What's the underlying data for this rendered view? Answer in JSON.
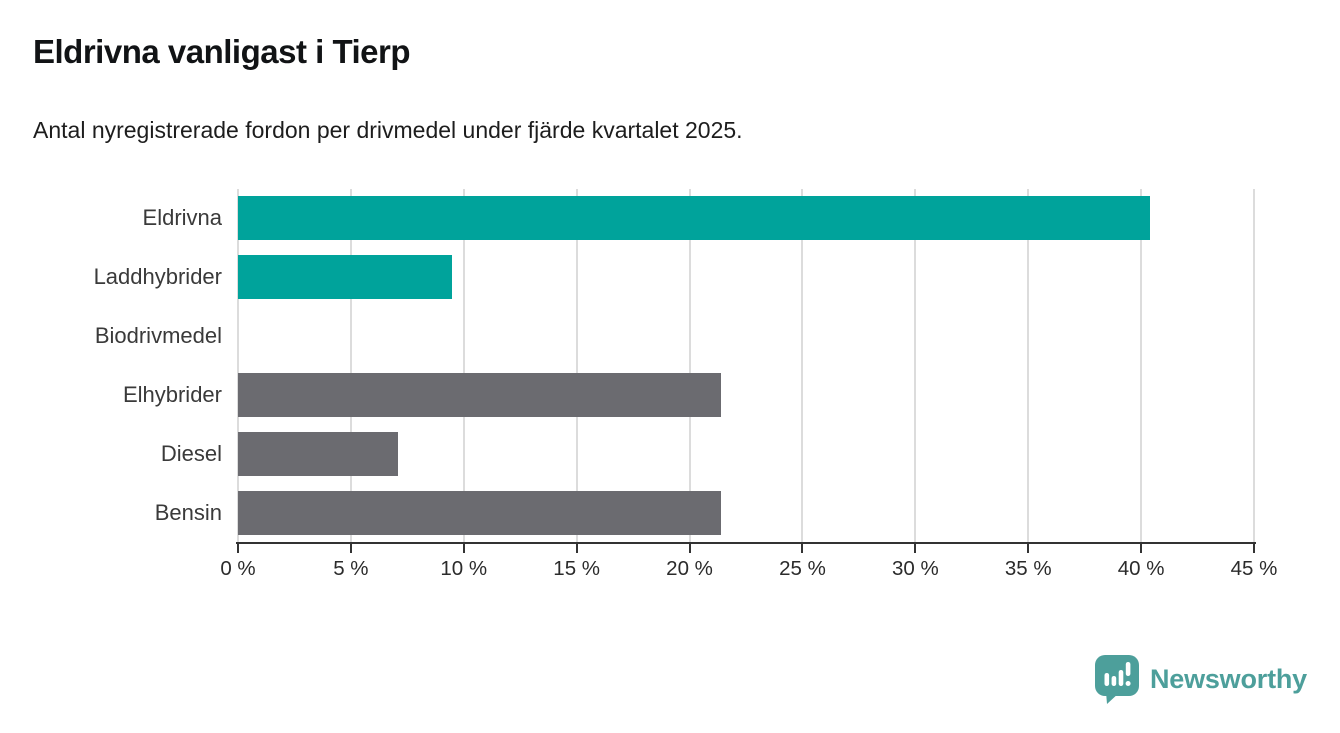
{
  "title": "Eldrivna vanligast i Tierp",
  "subtitle": "Antal nyregistrerade fordon per drivmedel under fjärde kvartalet 2025.",
  "branding": {
    "logo_text": "Newsworthy",
    "logo_icon": "bar-chart-speech-bubble-icon",
    "logo_color": "#4d9f9b"
  },
  "colors": {
    "teal_bar": "#00a39b",
    "gray_bar": "#6b6b70",
    "gridline": "#dcdcdc",
    "axis": "#333333",
    "label_text": "#3a3a3a"
  },
  "chart_data": {
    "type": "bar",
    "orientation": "horizontal",
    "title": "Eldrivna vanligast i Tierp",
    "subtitle": "Antal nyregistrerade fordon per drivmedel under fjärde kvartalet 2025.",
    "categories": [
      "Eldrivna",
      "Laddhybrider",
      "Biodrivmedel",
      "Elhybrider",
      "Diesel",
      "Bensin"
    ],
    "values": [
      40.4,
      9.5,
      0,
      21.4,
      7.1,
      21.4
    ],
    "bar_colors": [
      "#00a39b",
      "#00a39b",
      "#00a39b",
      "#6b6b70",
      "#6b6b70",
      "#6b6b70"
    ],
    "unit": "%",
    "xlabel": "",
    "ylabel": "",
    "xlim": [
      0,
      45
    ],
    "x_ticks": [
      0,
      5,
      10,
      15,
      20,
      25,
      30,
      35,
      40,
      45
    ],
    "x_tick_labels": [
      "0 %",
      "5 %",
      "10 %",
      "15 %",
      "20 %",
      "25 %",
      "30 %",
      "35 %",
      "40 %",
      "45 %"
    ],
    "grid": "vertical-gridlines-on",
    "legend": "none"
  }
}
